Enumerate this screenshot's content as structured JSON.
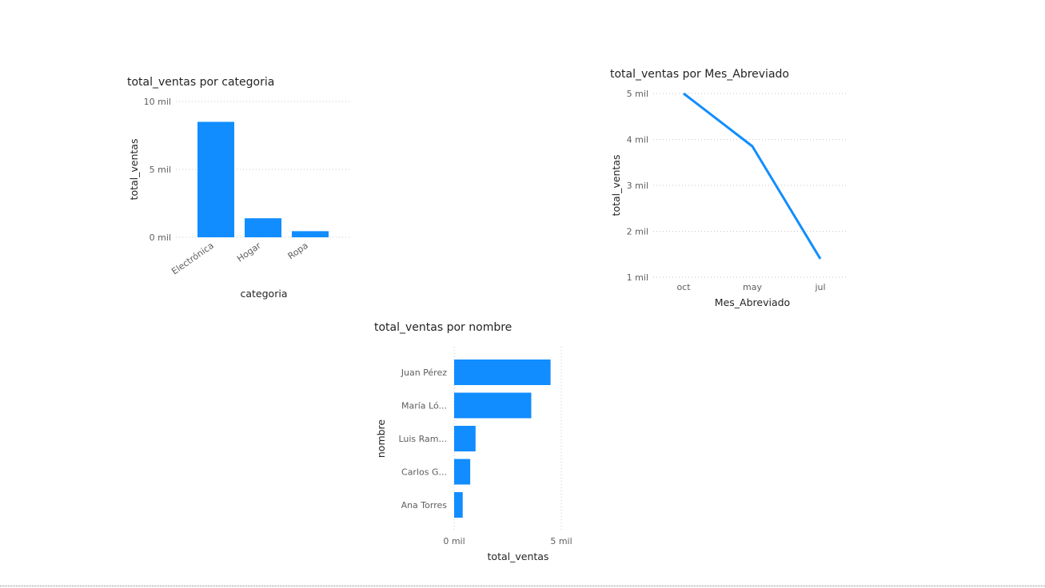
{
  "colors": {
    "bar": "#118DFF",
    "line": "#118DFF",
    "grid": "#C8C6C4",
    "text": "#252423",
    "tick": "#605E5C"
  },
  "chart_data": [
    {
      "type": "bar",
      "title": "total_ventas por categoria",
      "xlabel": "categoria",
      "ylabel": "total_ventas",
      "categories": [
        "Electrónica",
        "Hogar",
        "Ropa"
      ],
      "values": [
        8500,
        1400,
        450
      ],
      "ylim": [
        0,
        10000
      ],
      "yticks": [
        0,
        5000,
        10000
      ],
      "ytick_labels": [
        "0 mil",
        "5 mil",
        "10 mil"
      ],
      "grid": true
    },
    {
      "type": "line",
      "title": "total_ventas por Mes_Abreviado",
      "xlabel": "Mes_Abreviado",
      "ylabel": "total_ventas",
      "categories": [
        "oct",
        "may",
        "jul"
      ],
      "values": [
        5000,
        3850,
        1400
      ],
      "ylim": [
        1000,
        5000
      ],
      "yticks": [
        1000,
        2000,
        3000,
        4000,
        5000
      ],
      "ytick_labels": [
        "1 mil",
        "2 mil",
        "3 mil",
        "4 mil",
        "5 mil"
      ],
      "grid": true
    },
    {
      "type": "bar",
      "orientation": "horizontal",
      "title": "total_ventas por nombre",
      "xlabel": "total_ventas",
      "ylabel": "nombre",
      "categories": [
        "Juan Pérez",
        "María Ló...",
        "Luis Ram...",
        "Carlos G...",
        "Ana Torres"
      ],
      "values": [
        4500,
        3600,
        1000,
        750,
        400
      ],
      "xlim": [
        0,
        5000
      ],
      "xticks": [
        0,
        5000
      ],
      "xtick_labels": [
        "0 mil",
        "5 mil"
      ],
      "grid": true
    }
  ]
}
